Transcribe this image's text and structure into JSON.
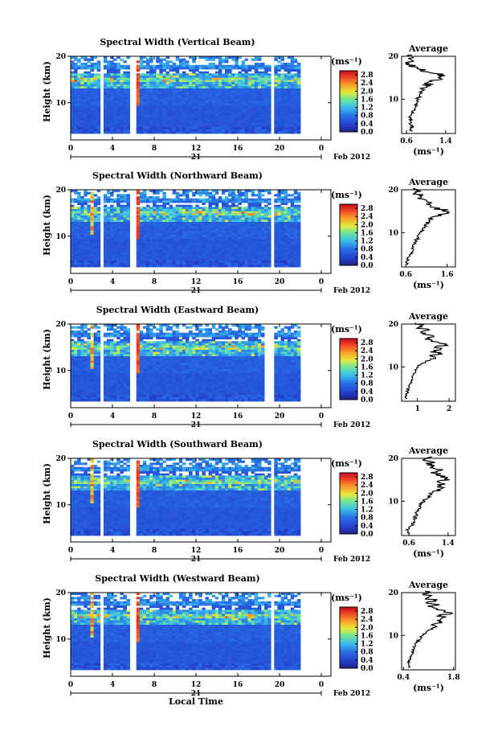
{
  "chart_data": [
    {
      "type": "heatmap",
      "title": "Spectral Width (Vertical Beam)",
      "ylabel": "Height (km)",
      "xlabel": "",
      "xticks": [
        "0",
        "4",
        "8",
        "12",
        "16",
        "20",
        "0"
      ],
      "yticks": [
        "10",
        "20"
      ],
      "xlim": [
        0,
        24
      ],
      "ylim": [
        2,
        20
      ],
      "day_label": "21",
      "date_label": "Feb 2012",
      "gaps_hours": [
        [
          2.5,
          3.0
        ],
        [
          5.3,
          6.0
        ],
        [
          18.2,
          18.5
        ]
      ],
      "colorbar": {
        "unit": "(ms⁻¹)",
        "ticks": [
          "0.0",
          "0.4",
          "0.8",
          "1.2",
          "1.6",
          "2.0",
          "2.4",
          "2.8"
        ],
        "range": [
          0.0,
          3.0
        ]
      },
      "profile": {
        "title": "Average",
        "xticks": [
          "0.6",
          "1.4"
        ],
        "xlabel": "(ms⁻¹)",
        "yticks": [
          "10",
          "20"
        ],
        "xlim": [
          0.5,
          1.6
        ],
        "height_km": [
          2.5,
          3,
          3.5,
          4,
          4.5,
          5,
          5.5,
          6,
          6.5,
          7,
          7.5,
          8,
          8.5,
          9,
          9.5,
          10,
          10.5,
          11,
          11.5,
          12,
          12.5,
          13,
          13.5,
          14,
          14.5,
          15,
          15.5,
          16,
          16.5,
          17,
          17.5,
          18,
          18.5,
          19,
          19.5,
          20
        ],
        "values": [
          0.7,
          0.66,
          0.73,
          0.68,
          0.72,
          0.7,
          0.66,
          0.69,
          0.71,
          0.74,
          0.76,
          0.78,
          0.79,
          0.8,
          0.82,
          0.83,
          0.86,
          0.88,
          0.9,
          0.93,
          0.96,
          1.0,
          1.05,
          1.12,
          1.25,
          1.35,
          1.3,
          1.1,
          0.95,
          0.8,
          0.72,
          0.68,
          0.65,
          0.66,
          0.64,
          0.65
        ]
      }
    },
    {
      "type": "heatmap",
      "title": "Spectral Width (Northward Beam)",
      "ylabel": "Height (km)",
      "xlabel": "",
      "xticks": [
        "0",
        "4",
        "8",
        "12",
        "16",
        "20",
        "0"
      ],
      "yticks": [
        "10",
        "20"
      ],
      "xlim": [
        0,
        24
      ],
      "ylim": [
        2,
        20
      ],
      "day_label": "21",
      "date_label": "Feb 2012",
      "gaps_hours": [
        [
          2.5,
          3.0
        ],
        [
          5.3,
          6.0
        ],
        [
          18.2,
          18.5
        ]
      ],
      "colorbar": {
        "unit": "(ms⁻¹)",
        "ticks": [
          "0.0",
          "0.4",
          "0.8",
          "1.2",
          "1.6",
          "2.0",
          "2.4",
          "2.8"
        ],
        "range": [
          0.0,
          3.0
        ]
      },
      "profile": {
        "title": "Average",
        "xticks": [
          "0.6",
          "1.6"
        ],
        "xlabel": "(ms⁻¹)",
        "yticks": [
          "10",
          "20"
        ],
        "xlim": [
          0.5,
          1.8
        ],
        "height_km": [
          2.5,
          3,
          3.5,
          4,
          4.5,
          5,
          5.5,
          6,
          6.5,
          7,
          7.5,
          8,
          8.5,
          9,
          9.5,
          10,
          10.5,
          11,
          11.5,
          12,
          12.5,
          13,
          13.5,
          14,
          14.5,
          15,
          15.5,
          16,
          16.5,
          17,
          17.5,
          18,
          18.5,
          19,
          19.5,
          20
        ],
        "values": [
          0.62,
          0.6,
          0.64,
          0.66,
          0.7,
          0.72,
          0.74,
          0.76,
          0.78,
          0.8,
          0.82,
          0.85,
          0.88,
          0.9,
          0.92,
          0.95,
          1.0,
          1.02,
          1.08,
          1.12,
          1.15,
          1.2,
          1.3,
          1.45,
          1.6,
          1.55,
          1.35,
          1.25,
          1.1,
          1.2,
          1.05,
          0.95,
          1.0,
          0.85,
          0.9,
          0.8
        ]
      }
    },
    {
      "type": "heatmap",
      "title": "Spectral Width (Eastward Beam)",
      "ylabel": "Height (km)",
      "xlabel": "",
      "xticks": [
        "0",
        "4",
        "8",
        "12",
        "16",
        "20",
        "0"
      ],
      "yticks": [
        "10",
        "20"
      ],
      "xlim": [
        0,
        24
      ],
      "ylim": [
        2,
        20
      ],
      "day_label": "21",
      "date_label": "Feb 2012",
      "gaps_hours": [
        [
          2.5,
          3.0
        ],
        [
          5.3,
          6.0
        ],
        [
          17.7,
          18.2
        ],
        [
          18.2,
          18.5
        ]
      ],
      "colorbar": {
        "unit": "(ms⁻¹)",
        "ticks": [
          "0.0",
          "0.4",
          "0.8",
          "1.2",
          "1.6",
          "2.0",
          "2.4",
          "2.8"
        ],
        "range": [
          0.0,
          3.0
        ]
      },
      "profile": {
        "title": "Average",
        "xticks": [
          "1",
          "2"
        ],
        "xlabel": "",
        "yticks": [
          "10",
          "20"
        ],
        "xlim": [
          0.5,
          2.2
        ],
        "height_km": [
          2.5,
          3,
          3.5,
          4,
          4.5,
          5,
          5.5,
          6,
          6.5,
          7,
          7.5,
          8,
          8.5,
          9,
          9.5,
          10,
          10.5,
          11,
          11.5,
          12,
          12.5,
          13,
          13.5,
          14,
          14.5,
          15,
          15.5,
          16,
          16.5,
          17,
          17.5,
          18,
          18.5,
          19,
          19.5,
          20
        ],
        "values": [
          0.65,
          0.62,
          0.66,
          0.68,
          0.7,
          0.72,
          0.75,
          0.78,
          0.8,
          0.82,
          0.85,
          0.88,
          0.92,
          0.95,
          1.0,
          1.05,
          1.1,
          1.25,
          1.4,
          1.55,
          1.45,
          1.7,
          1.5,
          1.8,
          1.6,
          1.95,
          1.7,
          1.5,
          1.3,
          1.45,
          1.2,
          1.1,
          1.3,
          1.05,
          1.15,
          1.0
        ]
      }
    },
    {
      "type": "heatmap",
      "title": "Spectral Width (Southward Beam)",
      "ylabel": "Height (km)",
      "xlabel": "",
      "xticks": [
        "0",
        "4",
        "8",
        "12",
        "16",
        "20",
        "0"
      ],
      "yticks": [
        "10",
        "20"
      ],
      "xlim": [
        0,
        24
      ],
      "ylim": [
        2,
        20
      ],
      "day_label": "21",
      "date_label": "Feb 2012",
      "gaps_hours": [
        [
          2.5,
          3.0
        ],
        [
          5.3,
          6.0
        ],
        [
          18.2,
          18.5
        ]
      ],
      "colorbar": {
        "unit": "(ms⁻¹)",
        "ticks": [
          "0.0",
          "0.4",
          "0.8",
          "1.2",
          "1.6",
          "2.0",
          "2.4",
          "2.8"
        ],
        "range": [
          0.0,
          3.0
        ]
      },
      "profile": {
        "title": "Average",
        "xticks": [
          "0.6",
          "1.4"
        ],
        "xlabel": "(ms⁻¹)",
        "yticks": [
          "10",
          "20"
        ],
        "xlim": [
          0.45,
          1.55
        ],
        "height_km": [
          2.5,
          3,
          3.5,
          4,
          4.5,
          5,
          5.5,
          6,
          6.5,
          7,
          7.5,
          8,
          8.5,
          9,
          9.5,
          10,
          10.5,
          11,
          11.5,
          12,
          12.5,
          13,
          13.5,
          14,
          14.5,
          15,
          15.5,
          16,
          16.5,
          17,
          17.5,
          18,
          18.5,
          19,
          19.5,
          20
        ],
        "values": [
          0.6,
          0.58,
          0.62,
          0.64,
          0.66,
          0.68,
          0.7,
          0.72,
          0.74,
          0.76,
          0.78,
          0.8,
          0.82,
          0.85,
          0.88,
          0.92,
          0.96,
          1.0,
          1.05,
          1.1,
          1.15,
          1.22,
          1.18,
          1.3,
          1.25,
          1.38,
          1.3,
          1.2,
          1.1,
          1.25,
          1.05,
          1.15,
          0.98,
          1.1,
          0.95,
          1.0
        ]
      }
    },
    {
      "type": "heatmap",
      "title": "Spectral Width (Westward Beam)",
      "ylabel": "Height (km)",
      "xlabel": "Local Time",
      "xticks": [
        "0",
        "4",
        "8",
        "12",
        "16",
        "20",
        "0"
      ],
      "yticks": [
        "10",
        "20"
      ],
      "xlim": [
        0,
        24
      ],
      "ylim": [
        2,
        20
      ],
      "day_label": "21",
      "date_label": "Feb 2012",
      "gaps_hours": [
        [
          2.5,
          3.0
        ],
        [
          5.3,
          6.0
        ],
        [
          18.2,
          18.5
        ]
      ],
      "colorbar": {
        "unit": "(ms⁻¹)",
        "ticks": [
          "0.0",
          "0.4",
          "0.8",
          "1.2",
          "1.6",
          "2.0",
          "2.4",
          "2.8"
        ],
        "range": [
          0.0,
          3.0
        ]
      },
      "profile": {
        "title": "Average",
        "xticks": [
          "0.4",
          "1.8"
        ],
        "xlabel": "(ms⁻¹)",
        "yticks": [
          "10",
          "20"
        ],
        "xlim": [
          0.35,
          1.85
        ],
        "height_km": [
          2.5,
          3,
          3.5,
          4,
          4.5,
          5,
          5.5,
          6,
          6.5,
          7,
          7.5,
          8,
          8.5,
          9,
          9.5,
          10,
          10.5,
          11,
          11.5,
          12,
          12.5,
          13,
          13.5,
          14,
          14.5,
          15,
          15.5,
          16,
          16.5,
          17,
          17.5,
          18,
          18.5,
          19,
          19.5,
          20
        ],
        "values": [
          0.55,
          0.52,
          0.56,
          0.58,
          0.6,
          0.62,
          0.64,
          0.66,
          0.68,
          0.7,
          0.72,
          0.75,
          0.8,
          0.85,
          0.9,
          0.98,
          1.05,
          1.1,
          1.2,
          1.3,
          1.25,
          1.45,
          1.35,
          1.55,
          1.4,
          1.7,
          1.5,
          1.3,
          1.15,
          1.35,
          1.1,
          1.25,
          1.05,
          1.2,
          1.0,
          1.1
        ]
      }
    }
  ]
}
